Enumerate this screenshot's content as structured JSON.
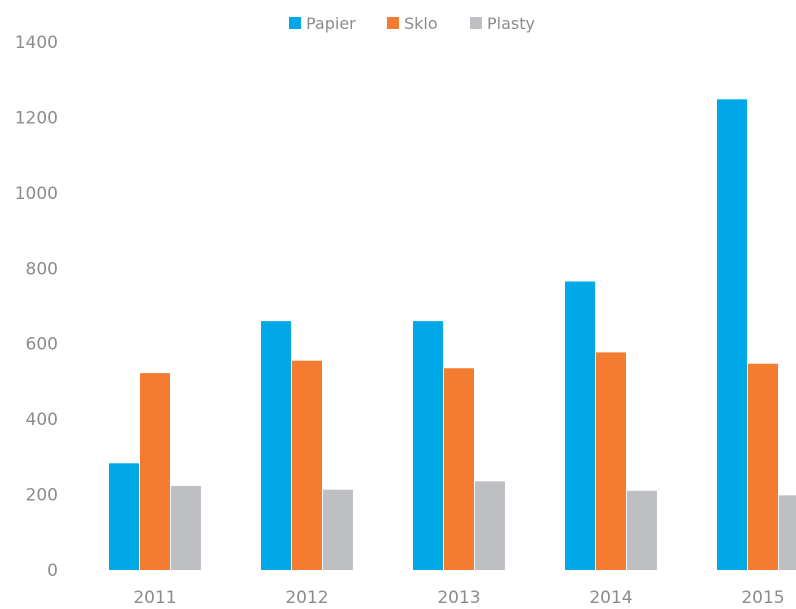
{
  "chart_data": {
    "type": "bar",
    "categories": [
      "2011",
      "2012",
      "2013",
      "2014",
      "2015"
    ],
    "series": [
      {
        "name": "Papier",
        "color": "#00a8e8",
        "values": [
          283,
          660,
          660,
          765,
          1248
        ]
      },
      {
        "name": "Sklo",
        "color": "#f47c30",
        "values": [
          522,
          555,
          535,
          577,
          547
        ]
      },
      {
        "name": "Plasty",
        "color": "#bdbfc3",
        "values": [
          223,
          213,
          235,
          210,
          198
        ]
      }
    ],
    "y_ticks": [
      "0",
      "200",
      "400",
      "600",
      "800",
      "1000",
      "1200",
      "1400"
    ],
    "ylim": [
      0,
      1400
    ],
    "grid": false,
    "legend_position": "top"
  }
}
